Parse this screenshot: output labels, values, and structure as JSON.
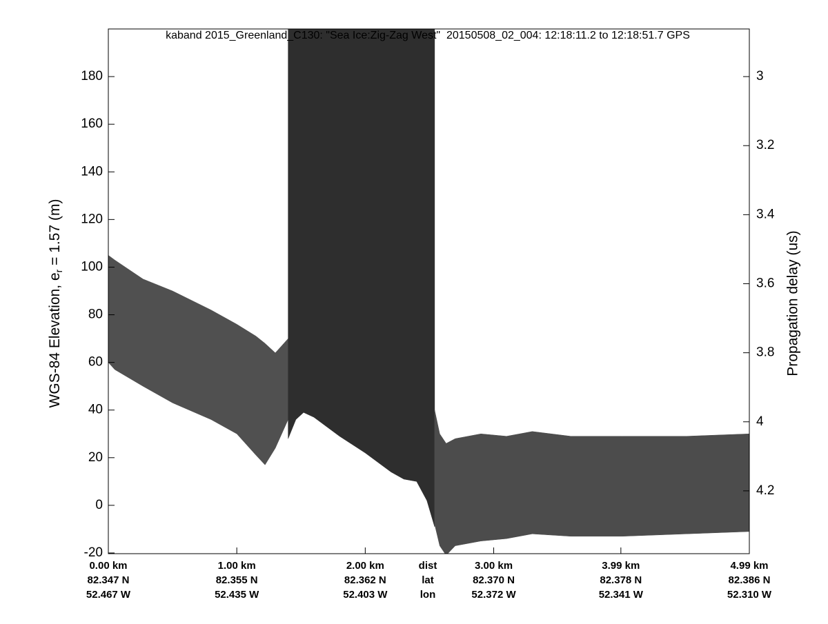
{
  "chart_data": {
    "type": "echogram",
    "title": "kaband 2015_Greenland_C130: \"Sea Ice:Zig-Zag West\"  20150508_02_004: 12:18:11.2 to 12:18:51.7 GPS",
    "ylabel": [
      "WGS-84 Elevation, e",
      "r",
      " = 1.57 (m)"
    ],
    "y2label": "Propagation delay (us)",
    "xlim": [
      0,
      4.99
    ],
    "xticks": [
      {
        "value": 0,
        "label": "0.00 km"
      },
      {
        "value": 1.0,
        "label": "1.00 km"
      },
      {
        "value": 2.0,
        "label": "2.00 km"
      },
      {
        "value": 3.0,
        "label": "3.00 km"
      },
      {
        "value": 3.99,
        "label": "3.99 km"
      },
      {
        "value": 4.99,
        "label": "4.99 km"
      }
    ],
    "x_lat_labels": [
      "82.347 N",
      "82.355 N",
      "82.362 N",
      "82.370 N",
      "82.378 N",
      "82.386 N"
    ],
    "x_lon_labels": [
      "52.467 W",
      "52.435 W",
      "52.403 W",
      "52.372 W",
      "52.341 W",
      "52.310 W"
    ],
    "x_row_labels": [
      "dist",
      "lat",
      "lon"
    ],
    "ylim": [
      -20.3,
      200
    ],
    "yticks": [
      -20,
      0,
      20,
      40,
      60,
      80,
      100,
      120,
      140,
      160,
      180
    ],
    "y2lim": [
      2.862,
      4.382
    ],
    "y2ticks": [
      3,
      3.2,
      3.4,
      3.6,
      3.8,
      4,
      4.2
    ],
    "series": [
      {
        "color": "#505050",
        "x": [
          0,
          0.05,
          0.27,
          0.5,
          0.8,
          1.0,
          1.15,
          1.22,
          1.3,
          1.4
        ],
        "upper": [
          105,
          103,
          95,
          90,
          82,
          76,
          71,
          68,
          64,
          70
        ],
        "lower": [
          60,
          57,
          50,
          43,
          36,
          30,
          21,
          17,
          24,
          36
        ]
      },
      {
        "color": "#2e2e2e",
        "x": [
          1.4,
          1.46,
          1.52,
          1.6,
          1.8,
          2.0,
          2.2,
          2.3,
          2.4,
          2.48,
          2.54
        ],
        "upper": [
          200,
          200,
          200,
          200,
          200,
          200,
          200,
          200,
          200,
          200,
          200
        ],
        "lower": [
          28,
          36,
          39,
          37,
          29,
          22,
          14,
          11,
          10,
          2,
          -9
        ]
      },
      {
        "color": "#4c4c4c",
        "x": [
          2.54,
          2.58,
          2.63,
          2.7,
          2.9,
          3.1,
          3.3,
          3.6,
          4.0,
          4.5,
          4.99
        ],
        "upper": [
          40,
          30,
          26,
          28,
          30,
          29,
          31,
          29,
          29,
          29,
          30
        ],
        "lower": [
          -8,
          -17,
          -21,
          -17,
          -15,
          -14,
          -12,
          -13,
          -13,
          -12,
          -11
        ]
      }
    ]
  }
}
